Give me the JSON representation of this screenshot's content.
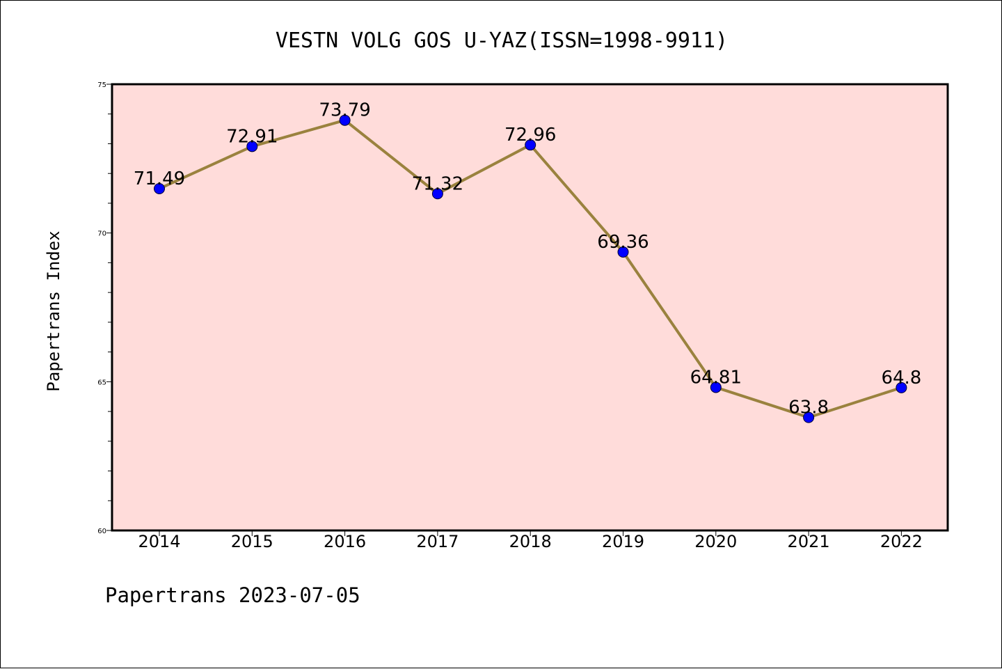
{
  "chart_data": {
    "type": "line",
    "title": "VESTN VOLG GOS U-YAZ(ISSN=1998-9911)",
    "xlabel": "",
    "ylabel": "Papertrans Index",
    "footer": "Papertrans 2023-07-05",
    "categories": [
      "2014",
      "2015",
      "2016",
      "2017",
      "2018",
      "2019",
      "2020",
      "2021",
      "2022"
    ],
    "values": [
      71.49,
      72.91,
      73.79,
      71.32,
      72.96,
      69.36,
      64.81,
      63.8,
      64.8
    ],
    "data_labels": [
      "71.49",
      "72.91",
      "73.79",
      "71.32",
      "72.96",
      "69.36",
      "64.81",
      "63.8",
      "64.8"
    ],
    "ylim": [
      60,
      75
    ],
    "yticks": [
      "60",
      "65",
      "70",
      "75"
    ],
    "grid": false,
    "legend": "none",
    "colors": {
      "plot_background": "#FFDCDA",
      "line": "#9A823E",
      "marker": "#0000FF"
    }
  }
}
